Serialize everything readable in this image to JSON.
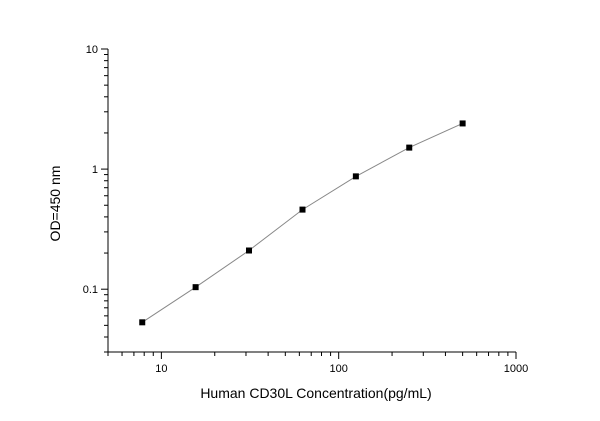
{
  "chart_data": {
    "type": "scatter",
    "title": "",
    "xlabel": "Human CD30L Concentration(pg/mL)",
    "ylabel": "OD=450 nm",
    "xscale": "log",
    "yscale": "log",
    "xlim": [
      5,
      1000
    ],
    "ylim": [
      0.03,
      10
    ],
    "xticks": [
      10,
      100,
      1000
    ],
    "xtick_labels": [
      "10",
      "100",
      "1000"
    ],
    "yticks": [
      0.1,
      1,
      10
    ],
    "ytick_labels": [
      "0.1",
      "1",
      "10"
    ],
    "grid": false,
    "legend": "none",
    "colors": {
      "axis": "#000000",
      "line": "#888888",
      "marker": "#000000"
    },
    "series": [
      {
        "x": [
          7.8,
          15.6,
          31.2,
          62.5,
          125,
          250,
          500
        ],
        "y": [
          0.053,
          0.104,
          0.21,
          0.46,
          0.87,
          1.51,
          2.4
        ],
        "marker": "square",
        "fit_line": true
      }
    ]
  }
}
